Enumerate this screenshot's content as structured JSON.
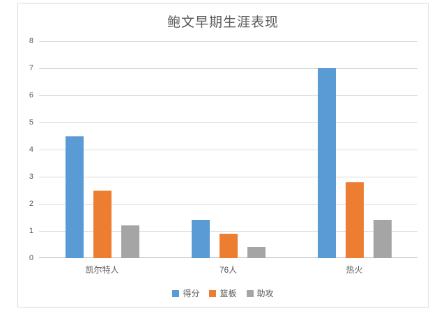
{
  "chart_data": {
    "type": "bar",
    "title": "鲍文早期生涯表现",
    "categories": [
      "凯尔特人",
      "76人",
      "热火"
    ],
    "series": [
      {
        "name": "得分",
        "color": "#5B9BD5",
        "values": [
          4.5,
          1.4,
          7.0
        ]
      },
      {
        "name": "篮板",
        "color": "#ED7D31",
        "values": [
          2.5,
          0.9,
          2.8
        ]
      },
      {
        "name": "助攻",
        "color": "#A5A5A5",
        "values": [
          1.2,
          0.4,
          1.4
        ]
      }
    ],
    "xlabel": "",
    "ylabel": "",
    "ylim": [
      0,
      8
    ],
    "ytick_step": 1,
    "yticks": [
      0,
      1,
      2,
      3,
      4,
      5,
      6,
      7,
      8
    ],
    "grid": true,
    "legend_position": "bottom",
    "colors": {
      "gridline": "#D9D9D9",
      "axis_line": "#BFBFBF",
      "text": "#595959",
      "chart_border": "#D9D9D9",
      "background": "#FFFFFF"
    }
  }
}
